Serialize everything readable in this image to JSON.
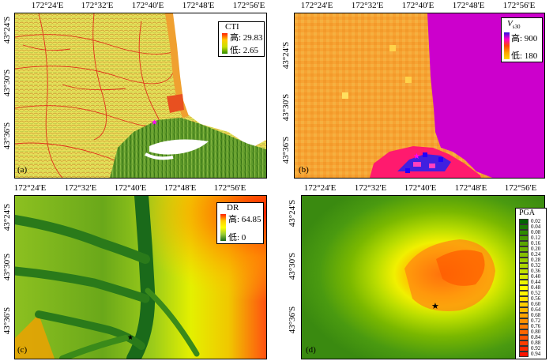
{
  "longitude_ticks": [
    "172°24'E",
    "172°32'E",
    "172°40'E",
    "172°48'E",
    "172°56'E"
  ],
  "latitude_ticks_top_panels": [
    "43°24'S",
    "43°30'S",
    "43°36'S"
  ],
  "latitude_ticks_bottom_panels": [
    "43°24'S",
    "43°30'S",
    "43°36'S"
  ],
  "panels": {
    "a": {
      "label": "(a)",
      "legend": {
        "title": "CTI",
        "high": "高: 29.83",
        "low": "低: 2.65"
      },
      "colors": [
        "#ff0000",
        "#ffa500",
        "#ffff00",
        "#9acd32",
        "#2e8b00"
      ],
      "has_star": true
    },
    "b": {
      "label": "(b)",
      "legend": {
        "title_main": "V",
        "title_sub": "s30",
        "high": "高: 900",
        "low": "低: 180"
      },
      "colors": [
        "#0000ff",
        "#ff00ff",
        "#ff4500",
        "#ffa500",
        "#ffff00"
      ],
      "has_star": true
    },
    "c": {
      "label": "(c)",
      "legend": {
        "title": "DR",
        "high": "高: 64.85",
        "low": "低: 0"
      },
      "colors": [
        "#1a6b1a",
        "#9acd32",
        "#ffff00",
        "#ff8c00",
        "#ff0000"
      ],
      "has_star": true
    },
    "d": {
      "label": "(d)",
      "legend": {
        "title": "PGA",
        "values": [
          "0.02",
          "0.04",
          "0.08",
          "0.12",
          "0.16",
          "0.20",
          "0.24",
          "0.28",
          "0.32",
          "0.36",
          "0.40",
          "0.44",
          "0.48",
          "0.52",
          "0.56",
          "0.60",
          "0.64",
          "0.68",
          "0.72",
          "0.76",
          "0.80",
          "0.84",
          "0.88",
          "0.92",
          "0.94"
        ],
        "value_colors": [
          "#006400",
          "#1a7a00",
          "#2e8b00",
          "#479900",
          "#5aa600",
          "#6fb300",
          "#85bf00",
          "#99cc00",
          "#add600",
          "#c2e000",
          "#d6eb00",
          "#ebf500",
          "#ffff00",
          "#fff200",
          "#ffe000",
          "#ffcc00",
          "#ffb800",
          "#ffa300",
          "#ff8f00",
          "#ff7a00",
          "#ff6600",
          "#ff5200",
          "#ff3d00",
          "#ff2900",
          "#ff1400"
        ]
      },
      "has_star": true
    }
  }
}
